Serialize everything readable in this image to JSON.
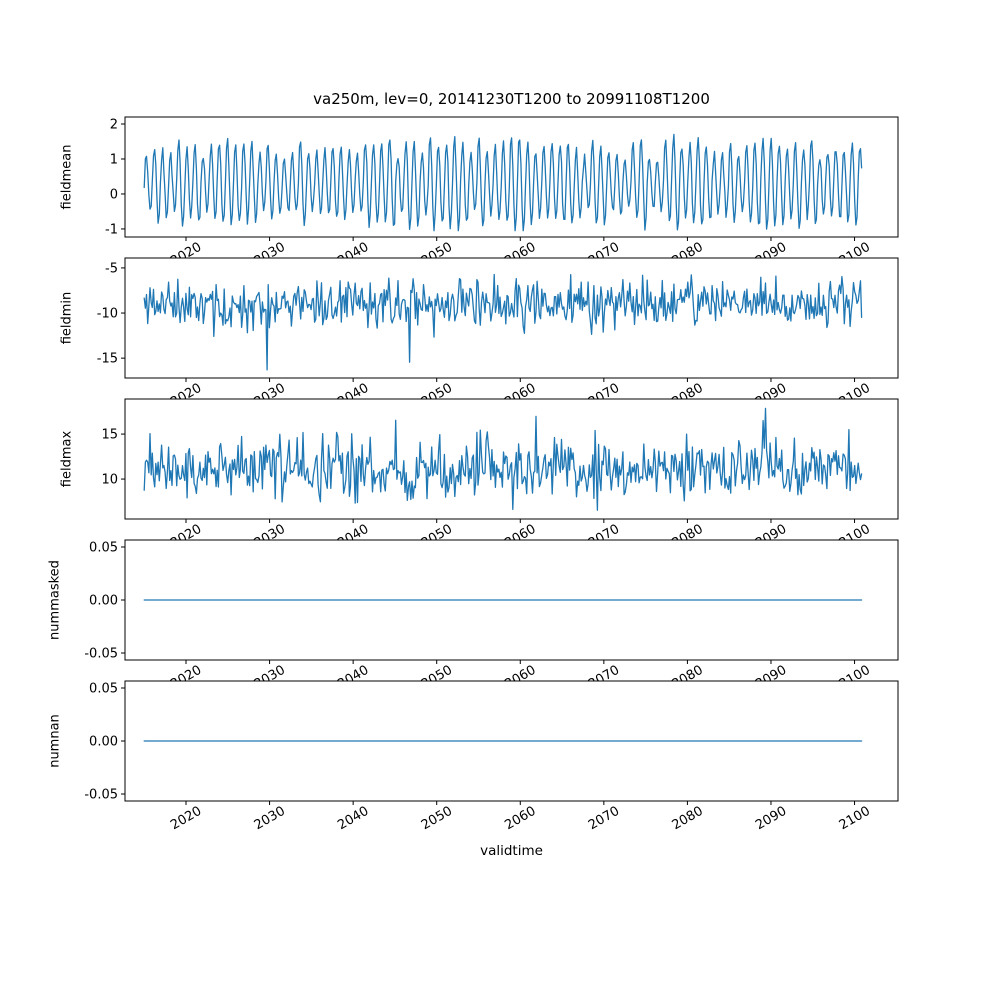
{
  "chart_data": {
    "type": "line",
    "title": "va250m, lev=0, 20141230T1200 to 20991108T1200",
    "xlabel": "validtime",
    "line_color": "#1f77b4",
    "grid": false,
    "legend": "none",
    "x": {
      "start": 2015.0,
      "end": 2100.85,
      "n_points": 620,
      "lim": [
        2012.7,
        2105.2
      ],
      "ticks": [
        2020,
        2030,
        2040,
        2050,
        2060,
        2070,
        2080,
        2090,
        2100
      ],
      "tick_labels": [
        "2020",
        "2030",
        "2040",
        "2050",
        "2060",
        "2070",
        "2080",
        "2090",
        "2100"
      ],
      "tick_rotation_deg": 30
    },
    "subplots": [
      {
        "id": "fieldmean",
        "ylabel": "fieldmean",
        "ylim": [
          -1.23,
          2.2
        ],
        "yticks": [
          -1,
          0,
          1,
          2
        ],
        "ytick_labels": [
          "-1",
          "0",
          "1",
          "2"
        ],
        "series": {
          "kind": "oscillation",
          "note": "dense quasi-periodic oscillation, approx annual cycle, mean ~0.3, peaks ~1.2-2.0, troughs ~-0.4 to -1.0",
          "base": 0.3,
          "amp": 1.05,
          "period": 7,
          "noise": 0.13,
          "clamp": [
            -1.05,
            1.97
          ],
          "seed": 7
        }
      },
      {
        "id": "fieldmin",
        "ylabel": "fieldmin",
        "ylim": [
          -17.2,
          -3.9
        ],
        "yticks": [
          -15,
          -10,
          -5
        ],
        "ytick_labels": [
          "-15",
          "-10",
          "-5"
        ],
        "series": {
          "kind": "noise",
          "note": "noisy series centered near -8.9, typical spread -5.5..-12.5, rare dips to ~-16",
          "base": -8.9,
          "spread": 2.3,
          "spike_prob": 0.012,
          "spike_lo": 2.0,
          "spike_hi": 4.5,
          "spike_sign": -1,
          "dip_prob": 0,
          "clamp": [
            -16.3,
            -4.5
          ],
          "seed": 11
        }
      },
      {
        "id": "fieldmax",
        "ylabel": "fieldmax",
        "ylim": [
          5.56,
          18.9
        ],
        "yticks": [
          10,
          15
        ],
        "ytick_labels": [
          "10",
          "15"
        ],
        "series": {
          "kind": "noise",
          "note": "noisy series centered near 11.1, typical spread 8..14, frequent peaks 15-17.8, rare dips ~6.8",
          "base": 11.1,
          "spread": 2.6,
          "spike_prob": 0.045,
          "spike_lo": 2.0,
          "spike_hi": 5.0,
          "spike_sign": 1,
          "dip_prob": 0.02,
          "dip_lo": 1.5,
          "dip_hi": 3.0,
          "clamp": [
            6.5,
            17.85
          ],
          "seed": 23
        }
      },
      {
        "id": "nummasked",
        "ylabel": "nummasked",
        "ylim": [
          -0.0566,
          0.0566
        ],
        "yticks": [
          -0.05,
          0,
          0.05
        ],
        "ytick_labels": [
          "-0.05",
          "0.00",
          "0.05"
        ],
        "series": {
          "kind": "flat",
          "value": 0
        }
      },
      {
        "id": "numnan",
        "ylabel": "numnan",
        "ylim": [
          -0.0566,
          0.0566
        ],
        "yticks": [
          -0.05,
          0,
          0.05
        ],
        "ytick_labels": [
          "-0.05",
          "0.00",
          "0.05"
        ],
        "series": {
          "kind": "flat",
          "value": 0
        }
      }
    ]
  }
}
